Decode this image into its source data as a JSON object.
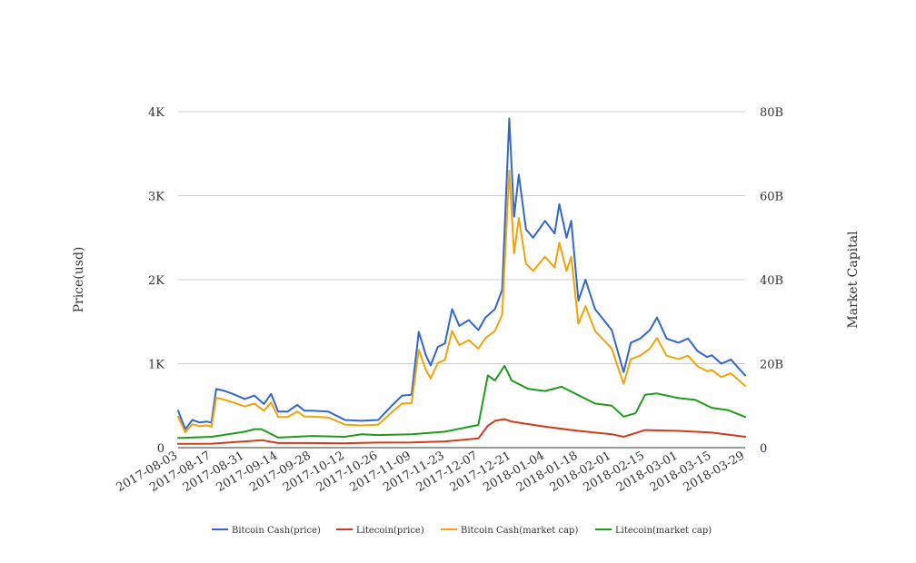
{
  "chart_data": {
    "type": "line",
    "title": "",
    "ylabel": "Price(usd)",
    "y2label": "Market Capital",
    "ylim": [
      0,
      4000
    ],
    "y2lim": [
      0,
      80000000000
    ],
    "grid": true,
    "legend_position": "bottom",
    "x_tick_labels": [
      "2017-08-03",
      "2017-08-17",
      "2017-08-31",
      "2017-09-14",
      "2017-09-28",
      "2017-10-12",
      "2017-10-26",
      "2017-11-09",
      "2017-11-23",
      "2017-12-07",
      "2017-12-21",
      "2018-01-04",
      "2018-01-18",
      "2018-02-01",
      "2018-02-15",
      "2018-03-01",
      "2018-03-15",
      "2018-03-29"
    ],
    "y_ticks": [
      {
        "value": 0,
        "label": "0"
      },
      {
        "value": 1000,
        "label": "1K"
      },
      {
        "value": 2000,
        "label": "2K"
      },
      {
        "value": 3000,
        "label": "3K"
      },
      {
        "value": 4000,
        "label": "4K"
      }
    ],
    "y2_ticks": [
      {
        "value": 0,
        "label": "0"
      },
      {
        "value": 20000000000,
        "label": "20B"
      },
      {
        "value": 40000000000,
        "label": "40B"
      },
      {
        "value": 60000000000,
        "label": "60B"
      },
      {
        "value": 80000000000,
        "label": "80B"
      }
    ],
    "series": [
      {
        "name": "Bitcoin Cash(price)",
        "axis": "left",
        "color": "#3366cc",
        "points": [
          [
            "2017-08-03",
            440
          ],
          [
            "2017-08-06",
            220
          ],
          [
            "2017-08-09",
            330
          ],
          [
            "2017-08-12",
            300
          ],
          [
            "2017-08-15",
            310
          ],
          [
            "2017-08-17",
            300
          ],
          [
            "2017-08-19",
            700
          ],
          [
            "2017-08-22",
            680
          ],
          [
            "2017-08-26",
            640
          ],
          [
            "2017-08-31",
            580
          ],
          [
            "2017-09-04",
            620
          ],
          [
            "2017-09-08",
            520
          ],
          [
            "2017-09-11",
            640
          ],
          [
            "2017-09-14",
            430
          ],
          [
            "2017-09-18",
            430
          ],
          [
            "2017-09-22",
            510
          ],
          [
            "2017-09-25",
            440
          ],
          [
            "2017-09-28",
            440
          ],
          [
            "2017-10-05",
            430
          ],
          [
            "2017-10-12",
            330
          ],
          [
            "2017-10-19",
            320
          ],
          [
            "2017-10-26",
            330
          ],
          [
            "2017-11-01",
            510
          ],
          [
            "2017-11-05",
            620
          ],
          [
            "2017-11-09",
            630
          ],
          [
            "2017-11-12",
            1380
          ],
          [
            "2017-11-15",
            1100
          ],
          [
            "2017-11-17",
            980
          ],
          [
            "2017-11-20",
            1200
          ],
          [
            "2017-11-23",
            1240
          ],
          [
            "2017-11-26",
            1650
          ],
          [
            "2017-11-29",
            1450
          ],
          [
            "2017-12-03",
            1520
          ],
          [
            "2017-12-07",
            1400
          ],
          [
            "2017-12-10",
            1550
          ],
          [
            "2017-12-14",
            1650
          ],
          [
            "2017-12-17",
            1880
          ],
          [
            "2017-12-20",
            3920
          ],
          [
            "2017-12-22",
            2750
          ],
          [
            "2017-12-24",
            3250
          ],
          [
            "2017-12-27",
            2600
          ],
          [
            "2017-12-30",
            2500
          ],
          [
            "2018-01-04",
            2700
          ],
          [
            "2018-01-08",
            2550
          ],
          [
            "2018-01-10",
            2900
          ],
          [
            "2018-01-13",
            2500
          ],
          [
            "2018-01-15",
            2700
          ],
          [
            "2018-01-18",
            1750
          ],
          [
            "2018-01-21",
            2000
          ],
          [
            "2018-01-25",
            1650
          ],
          [
            "2018-02-01",
            1400
          ],
          [
            "2018-02-04",
            1100
          ],
          [
            "2018-02-06",
            900
          ],
          [
            "2018-02-09",
            1250
          ],
          [
            "2018-02-13",
            1300
          ],
          [
            "2018-02-17",
            1400
          ],
          [
            "2018-02-20",
            1550
          ],
          [
            "2018-02-24",
            1300
          ],
          [
            "2018-03-01",
            1250
          ],
          [
            "2018-03-05",
            1300
          ],
          [
            "2018-03-09",
            1150
          ],
          [
            "2018-03-13",
            1080
          ],
          [
            "2018-03-15",
            1100
          ],
          [
            "2018-03-19",
            1000
          ],
          [
            "2018-03-23",
            1050
          ],
          [
            "2018-03-29",
            860
          ]
        ]
      },
      {
        "name": "Litecoin(price)",
        "axis": "left",
        "color": "#d03b1c",
        "points": [
          [
            "2017-08-03",
            45
          ],
          [
            "2017-08-17",
            48
          ],
          [
            "2017-08-31",
            75
          ],
          [
            "2017-09-07",
            90
          ],
          [
            "2017-09-14",
            55
          ],
          [
            "2017-09-28",
            55
          ],
          [
            "2017-10-12",
            52
          ],
          [
            "2017-10-26",
            60
          ],
          [
            "2017-11-09",
            62
          ],
          [
            "2017-11-23",
            75
          ],
          [
            "2017-12-07",
            110
          ],
          [
            "2017-12-11",
            260
          ],
          [
            "2017-12-14",
            320
          ],
          [
            "2017-12-18",
            340
          ],
          [
            "2017-12-21",
            310
          ],
          [
            "2018-01-04",
            250
          ],
          [
            "2018-01-18",
            200
          ],
          [
            "2018-02-01",
            160
          ],
          [
            "2018-02-06",
            130
          ],
          [
            "2018-02-15",
            210
          ],
          [
            "2018-03-01",
            200
          ],
          [
            "2018-03-15",
            180
          ],
          [
            "2018-03-29",
            130
          ]
        ]
      },
      {
        "name": "Bitcoin Cash(market cap)",
        "axis": "right",
        "color": "#f0a30a",
        "points": [
          [
            "2017-08-03",
            7400000000
          ],
          [
            "2017-08-06",
            3700000000
          ],
          [
            "2017-08-09",
            5600000000
          ],
          [
            "2017-08-12",
            5100000000
          ],
          [
            "2017-08-15",
            5300000000
          ],
          [
            "2017-08-17",
            5000000000
          ],
          [
            "2017-08-19",
            11900000000
          ],
          [
            "2017-08-22",
            11500000000
          ],
          [
            "2017-08-26",
            10800000000
          ],
          [
            "2017-08-31",
            9800000000
          ],
          [
            "2017-09-04",
            10500000000
          ],
          [
            "2017-09-08",
            8800000000
          ],
          [
            "2017-09-11",
            10800000000
          ],
          [
            "2017-09-14",
            7300000000
          ],
          [
            "2017-09-18",
            7300000000
          ],
          [
            "2017-09-22",
            8600000000
          ],
          [
            "2017-09-25",
            7400000000
          ],
          [
            "2017-09-28",
            7400000000
          ],
          [
            "2017-10-05",
            7200000000
          ],
          [
            "2017-10-12",
            5500000000
          ],
          [
            "2017-10-19",
            5300000000
          ],
          [
            "2017-10-26",
            5500000000
          ],
          [
            "2017-11-01",
            8600000000
          ],
          [
            "2017-11-05",
            10500000000
          ],
          [
            "2017-11-09",
            10600000000
          ],
          [
            "2017-11-12",
            23300000000
          ],
          [
            "2017-11-15",
            18500000000
          ],
          [
            "2017-11-17",
            16500000000
          ],
          [
            "2017-11-20",
            20200000000
          ],
          [
            "2017-11-23",
            20900000000
          ],
          [
            "2017-11-26",
            27800000000
          ],
          [
            "2017-11-29",
            24400000000
          ],
          [
            "2017-12-03",
            25600000000
          ],
          [
            "2017-12-07",
            23600000000
          ],
          [
            "2017-12-10",
            26100000000
          ],
          [
            "2017-12-14",
            27800000000
          ],
          [
            "2017-12-17",
            31700000000
          ],
          [
            "2017-12-20",
            66000000000
          ],
          [
            "2017-12-22",
            46300000000
          ],
          [
            "2017-12-24",
            54700000000
          ],
          [
            "2017-12-27",
            43800000000
          ],
          [
            "2017-12-30",
            42100000000
          ],
          [
            "2018-01-04",
            45500000000
          ],
          [
            "2018-01-08",
            42900000000
          ],
          [
            "2018-01-10",
            48800000000
          ],
          [
            "2018-01-13",
            42100000000
          ],
          [
            "2018-01-15",
            45500000000
          ],
          [
            "2018-01-18",
            29500000000
          ],
          [
            "2018-01-21",
            33700000000
          ],
          [
            "2018-01-25",
            27800000000
          ],
          [
            "2018-02-01",
            23600000000
          ],
          [
            "2018-02-04",
            18500000000
          ],
          [
            "2018-02-06",
            15200000000
          ],
          [
            "2018-02-09",
            21100000000
          ],
          [
            "2018-02-13",
            21900000000
          ],
          [
            "2018-02-17",
            23600000000
          ],
          [
            "2018-02-20",
            26100000000
          ],
          [
            "2018-02-24",
            21900000000
          ],
          [
            "2018-03-01",
            21100000000
          ],
          [
            "2018-03-05",
            21900000000
          ],
          [
            "2018-03-09",
            19400000000
          ],
          [
            "2018-03-13",
            18200000000
          ],
          [
            "2018-03-15",
            18500000000
          ],
          [
            "2018-03-19",
            16800000000
          ],
          [
            "2018-03-23",
            17700000000
          ],
          [
            "2018-03-29",
            14700000000
          ]
        ]
      },
      {
        "name": "Litecoin(market cap)",
        "axis": "right",
        "color": "#1f9a1f",
        "points": [
          [
            "2017-08-03",
            2300000000
          ],
          [
            "2017-08-17",
            2600000000
          ],
          [
            "2017-08-31",
            3800000000
          ],
          [
            "2017-09-04",
            4400000000
          ],
          [
            "2017-09-07",
            4400000000
          ],
          [
            "2017-09-14",
            2400000000
          ],
          [
            "2017-09-28",
            2800000000
          ],
          [
            "2017-10-12",
            2600000000
          ],
          [
            "2017-10-19",
            3200000000
          ],
          [
            "2017-10-26",
            3000000000
          ],
          [
            "2017-11-09",
            3200000000
          ],
          [
            "2017-11-23",
            3800000000
          ],
          [
            "2017-12-07",
            5400000000
          ],
          [
            "2017-12-11",
            17200000000
          ],
          [
            "2017-12-14",
            16000000000
          ],
          [
            "2017-12-18",
            19500000000
          ],
          [
            "2017-12-21",
            16000000000
          ],
          [
            "2017-12-28",
            14000000000
          ],
          [
            "2018-01-04",
            13500000000
          ],
          [
            "2018-01-11",
            14500000000
          ],
          [
            "2018-01-18",
            12500000000
          ],
          [
            "2018-01-25",
            10500000000
          ],
          [
            "2018-02-01",
            10000000000
          ],
          [
            "2018-02-06",
            7400000000
          ],
          [
            "2018-02-11",
            8200000000
          ],
          [
            "2018-02-15",
            12600000000
          ],
          [
            "2018-02-20",
            12900000000
          ],
          [
            "2018-03-01",
            11800000000
          ],
          [
            "2018-03-08",
            11400000000
          ],
          [
            "2018-03-15",
            9500000000
          ],
          [
            "2018-03-22",
            8900000000
          ],
          [
            "2018-03-29",
            7300000000
          ]
        ]
      }
    ]
  }
}
